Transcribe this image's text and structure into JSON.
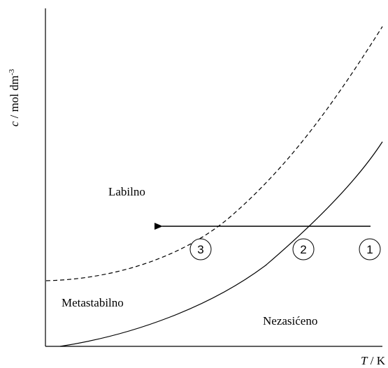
{
  "axes": {
    "y_label_var": "c",
    "y_label_unit": " / mol dm",
    "y_label_exp": "-3",
    "x_label_var": "T",
    "x_label_unit": " / K"
  },
  "regions": {
    "labile": "Labilno",
    "metastable": "Metastabilno",
    "unsaturated": "Nezasićeno"
  },
  "markers": [
    "1",
    "2",
    "3"
  ],
  "colors": {
    "line": "#000000",
    "background": "#ffffff"
  }
}
